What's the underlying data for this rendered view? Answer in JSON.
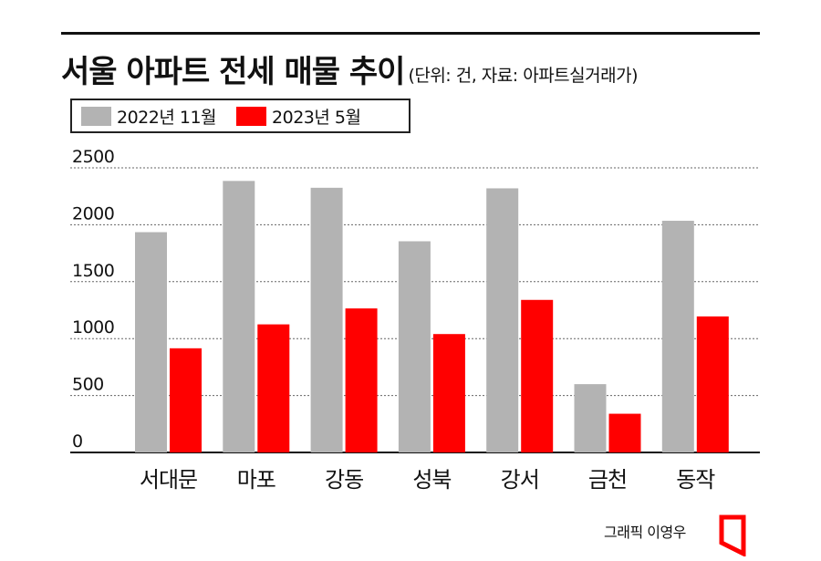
{
  "header": {
    "title": "서울 아파트 전세 매물 추이",
    "subtitle": "(단위: 건, 자료: 아파트실거래가)"
  },
  "credit": "그래픽 이영우",
  "logo_icon": "red-bracket-logo-icon",
  "colors": {
    "series_2022": "#b3b3b3",
    "series_2023": "#ff0000",
    "gridline": "#666666",
    "text": "#111111"
  },
  "chart_data": {
    "type": "bar",
    "title": "서울 아파트 전세 매물 추이",
    "subtitle": "(단위: 건, 자료: 아파트실거래가)",
    "categories": [
      "서대문",
      "마포",
      "강동",
      "성북",
      "강서",
      "금천",
      "동작"
    ],
    "series": [
      {
        "name": "2022년 11월",
        "values": [
          1935,
          2385,
          2325,
          1855,
          2320,
          600,
          2035
        ]
      },
      {
        "name": "2023년 5월",
        "values": [
          915,
          1125,
          1265,
          1040,
          1340,
          340,
          1195
        ]
      }
    ],
    "yticks": [
      "0",
      "500",
      "1000",
      "1500",
      "2000",
      "2500"
    ],
    "ylim": [
      0,
      2500
    ],
    "grid": true,
    "legend_position": "top-left"
  }
}
